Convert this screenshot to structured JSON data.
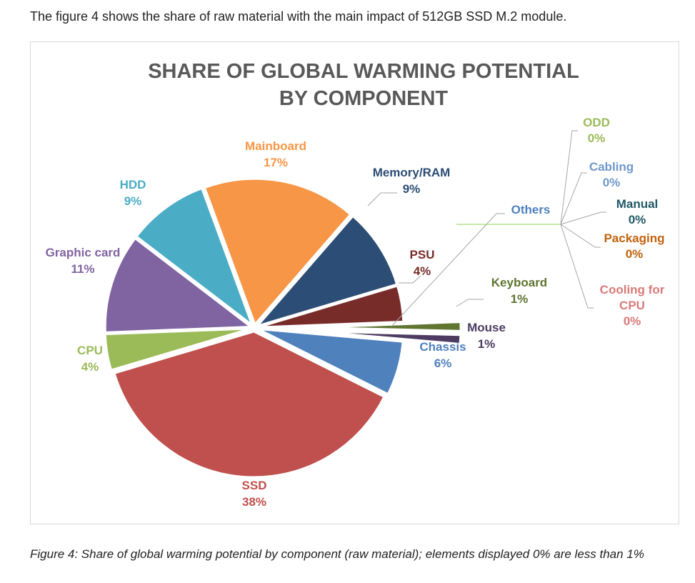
{
  "intro_text": "The figure 4 shows the share of raw material with the main impact of 512GB SSD M.2 module.",
  "caption_text": "Figure 4: Share of global warming potential by component (raw material); elements displayed 0% are less than 1%",
  "chart_data": {
    "type": "pie",
    "title_lines": [
      "SHARE OF GLOBAL WARMING POTENTIAL",
      "BY COMPONENT"
    ],
    "slices": [
      {
        "name": "Chassis",
        "value": 6,
        "label": "6%",
        "color": "#4f81bd"
      },
      {
        "name": "SSD",
        "value": 38,
        "label": "38%",
        "color": "#c0504d"
      },
      {
        "name": "CPU",
        "value": 4,
        "label": "4%",
        "color": "#9bbb59"
      },
      {
        "name": "Graphic card",
        "value": 11,
        "label": "11%",
        "color": "#8064a2"
      },
      {
        "name": "HDD",
        "value": 9,
        "label": "9%",
        "color": "#4bacc6"
      },
      {
        "name": "Mainboard",
        "value": 17,
        "label": "17%",
        "color": "#f79646"
      },
      {
        "name": "Memory/RAM",
        "value": 9,
        "label": "9%",
        "color": "#2c4d75"
      },
      {
        "name": "PSU",
        "value": 4,
        "label": "4%",
        "color": "#772c2a"
      },
      {
        "name": "Keyboard",
        "value": 1,
        "label": "1%",
        "color": "#5f7530"
      },
      {
        "name": "Mouse",
        "value": 1,
        "label": "1%",
        "color": "#4d3b62"
      }
    ],
    "others": {
      "name": "Others",
      "color": "#4f81bd",
      "items": [
        {
          "name": "ODD",
          "label": "0%",
          "color": "#9bbb59"
        },
        {
          "name": "Cabling",
          "label": "0%",
          "color": "#6f98c9"
        },
        {
          "name": "Manual",
          "label": "0%",
          "color": "#215967"
        },
        {
          "name": "Packaging",
          "label": "0%",
          "color": "#c0620c"
        },
        {
          "name": "Cooling for CPU",
          "label": "0%",
          "color": "#d97a78"
        }
      ]
    }
  }
}
